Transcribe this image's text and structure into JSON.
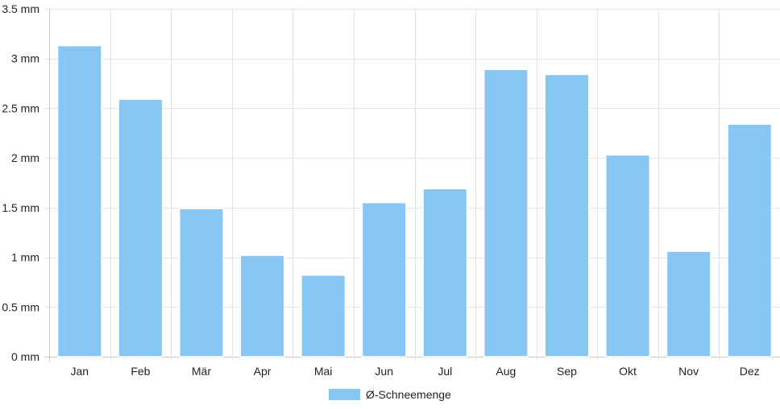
{
  "chart_data": {
    "type": "bar",
    "categories": [
      "Jan",
      "Feb",
      "Mär",
      "Apr",
      "Mai",
      "Jun",
      "Jul",
      "Aug",
      "Sep",
      "Okt",
      "Nov",
      "Dez"
    ],
    "series": [
      {
        "name": "Ø-Schneemenge",
        "values": [
          3.13,
          2.59,
          1.49,
          1.02,
          0.82,
          1.55,
          1.69,
          2.89,
          2.84,
          2.03,
          1.06,
          2.34
        ],
        "color": "#87c6f2"
      }
    ],
    "ylim": [
      0,
      3.5
    ],
    "yticks": [
      {
        "value": 0,
        "label": "0 mm"
      },
      {
        "value": 0.5,
        "label": "0.5 mm"
      },
      {
        "value": 1,
        "label": "1 mm"
      },
      {
        "value": 1.5,
        "label": "1.5 mm"
      },
      {
        "value": 2,
        "label": "2 mm"
      },
      {
        "value": 2.5,
        "label": "2.5 mm"
      },
      {
        "value": 3,
        "label": "3 mm"
      },
      {
        "value": 3.5,
        "label": "3.5 mm"
      }
    ],
    "grid": true,
    "legend_position": "bottom-center",
    "colors": {
      "grid": "#e3e3e3",
      "axis": "#c8c8c8",
      "text": "#222222"
    }
  }
}
